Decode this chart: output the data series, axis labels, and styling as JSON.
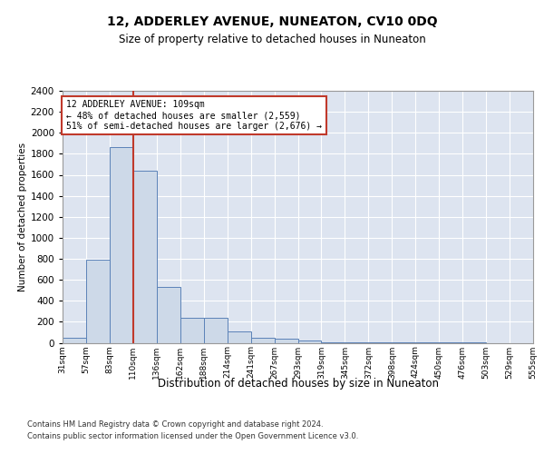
{
  "title": "12, ADDERLEY AVENUE, NUNEATON, CV10 0DQ",
  "subtitle": "Size of property relative to detached houses in Nuneaton",
  "xlabel": "Distribution of detached houses by size in Nuneaton",
  "ylabel": "Number of detached properties",
  "footer_line1": "Contains HM Land Registry data © Crown copyright and database right 2024.",
  "footer_line2": "Contains public sector information licensed under the Open Government Licence v3.0.",
  "annotation_line1": "12 ADDERLEY AVENUE: 109sqm",
  "annotation_line2": "← 48% of detached houses are smaller (2,559)",
  "annotation_line3": "51% of semi-detached houses are larger (2,676) →",
  "property_size_bin_index": 3,
  "bar_color": "#cdd9e8",
  "bar_edge_color": "#5b82b8",
  "vline_color": "#c0392b",
  "annotation_box_edge_color": "#c0392b",
  "background_color": "#ffffff",
  "axes_bg_color": "#dde4f0",
  "grid_color": "#ffffff",
  "ylim": [
    0,
    2400
  ],
  "yticks": [
    0,
    200,
    400,
    600,
    800,
    1000,
    1200,
    1400,
    1600,
    1800,
    2000,
    2200,
    2400
  ],
  "bin_labels": [
    "31sqm",
    "57sqm",
    "83sqm",
    "110sqm",
    "136sqm",
    "162sqm",
    "188sqm",
    "214sqm",
    "241sqm",
    "267sqm",
    "293sqm",
    "319sqm",
    "345sqm",
    "372sqm",
    "398sqm",
    "424sqm",
    "450sqm",
    "476sqm",
    "503sqm",
    "529sqm",
    "555sqm"
  ],
  "values": [
    50,
    790,
    1860,
    1640,
    530,
    240,
    240,
    105,
    50,
    35,
    25,
    5,
    5,
    2,
    2,
    1,
    1,
    1,
    0,
    0
  ]
}
